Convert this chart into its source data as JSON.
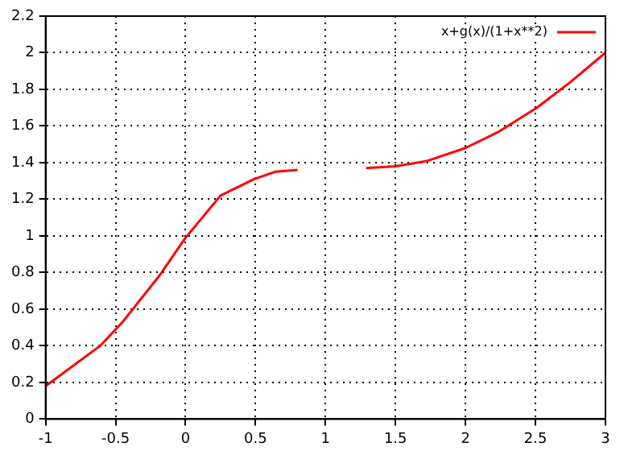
{
  "chart_data": {
    "type": "line",
    "x": [
      -1,
      -0.61,
      -0.45,
      -0.18,
      0,
      0.25,
      0.49,
      0.64,
      0.8,
      1,
      1.29,
      1.5,
      1.73,
      2,
      2.24,
      2.51,
      2.75,
      3
    ],
    "series": [
      {
        "name": "x+g(x)/(1+x**2)",
        "color": "#ff0000",
        "values": [
          0.18,
          0.4,
          0.53,
          0.79,
          0.99,
          1.22,
          1.31,
          1.35,
          1.36,
          null,
          1.37,
          1.38,
          1.41,
          1.48,
          1.57,
          1.7,
          1.84,
          2.0
        ]
      }
    ],
    "xlim": [
      -1,
      3
    ],
    "xticks": [
      -1,
      -0.5,
      0,
      0.5,
      1,
      1.5,
      2,
      2.5,
      3
    ],
    "ylim": [
      0,
      2.2
    ],
    "yticks": [
      0,
      0.2,
      0.4,
      0.6,
      0.8,
      1,
      1.2,
      1.4,
      1.6,
      1.8,
      2,
      2.2
    ],
    "grid": true,
    "legend": "top right",
    "marker": "none",
    "line_style": "solid"
  }
}
